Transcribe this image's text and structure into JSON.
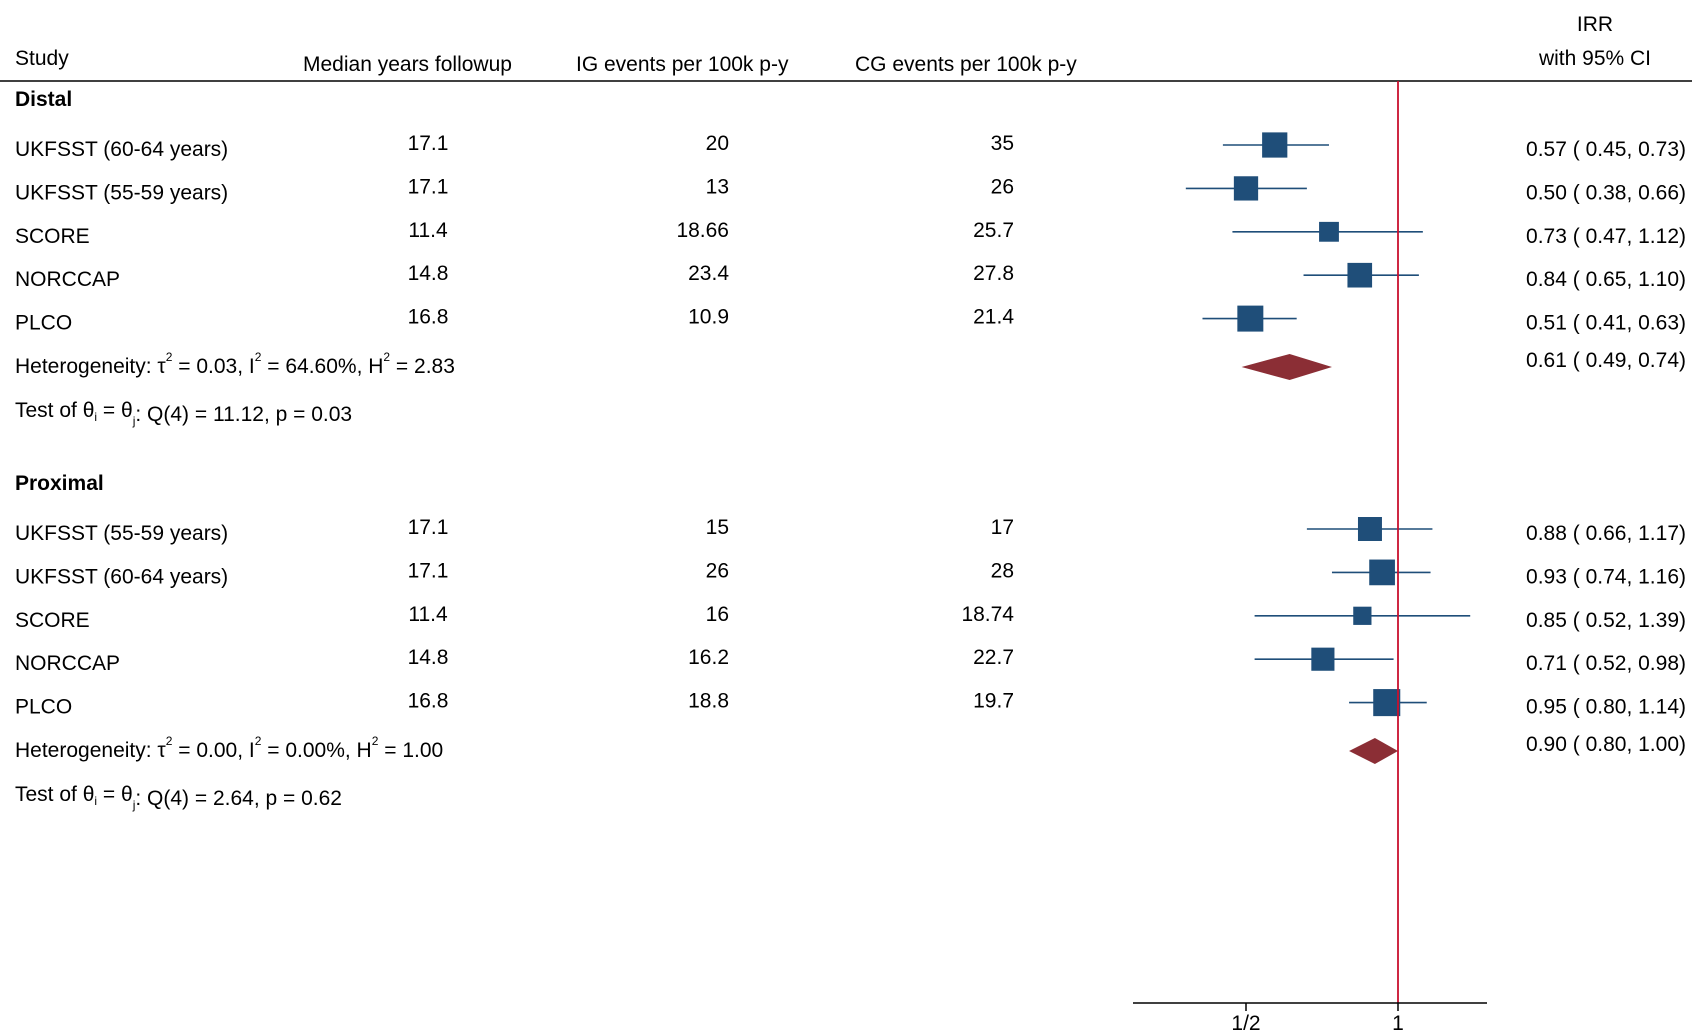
{
  "chart_data": {
    "type": "forest",
    "effect_label": "IRR",
    "ci_label": "with 95% CI",
    "columns": {
      "study": "Study",
      "followup": "Median years followup",
      "ig": "IG events per 100k p-y",
      "cg": "CG events per 100k p-y"
    },
    "x_axis": {
      "scale": "log",
      "ticks": [
        {
          "value": 0.5,
          "label": "1/2"
        },
        {
          "value": 1,
          "label": "1"
        }
      ],
      "reference_line": 1
    },
    "groups": [
      {
        "name": "Distal",
        "studies": [
          {
            "study": "UKFSST (60-64 years)",
            "followup": "17.1",
            "ig": "20",
            "cg": "35",
            "irr": 0.57,
            "lo": 0.45,
            "hi": 0.73,
            "irr_text": "0.57 ( 0.45,  0.73)"
          },
          {
            "study": "UKFSST (55-59 years)",
            "followup": "17.1",
            "ig": "13",
            "cg": "26",
            "irr": 0.5,
            "lo": 0.38,
            "hi": 0.66,
            "irr_text": "0.50 ( 0.38,  0.66)"
          },
          {
            "study": "SCORE",
            "followup": "11.4",
            "ig": "18.66",
            "cg": "25.7",
            "irr": 0.73,
            "lo": 0.47,
            "hi": 1.12,
            "irr_text": "0.73 ( 0.47,  1.12)"
          },
          {
            "study": "NORCCAP",
            "followup": "14.8",
            "ig": "23.4",
            "cg": "27.8",
            "irr": 0.84,
            "lo": 0.65,
            "hi": 1.1,
            "irr_text": "0.84 ( 0.65,  1.10)"
          },
          {
            "study": "PLCO",
            "followup": "16.8",
            "ig": "10.9",
            "cg": "21.4",
            "irr": 0.51,
            "lo": 0.41,
            "hi": 0.63,
            "irr_text": "0.51 ( 0.41,  0.63)"
          }
        ],
        "heterogeneity": {
          "tau2": "0.03",
          "i2": "64.60%",
          "h2": "2.83"
        },
        "test": {
          "q": "Q(4) = 11.12, p = 0.03"
        },
        "pooled": {
          "irr": 0.61,
          "lo": 0.49,
          "hi": 0.74,
          "irr_text": "0.61 ( 0.49,  0.74)"
        }
      },
      {
        "name": "Proximal",
        "studies": [
          {
            "study": "UKFSST (55-59 years)",
            "followup": "17.1",
            "ig": "15",
            "cg": "17",
            "irr": 0.88,
            "lo": 0.66,
            "hi": 1.17,
            "irr_text": "0.88 ( 0.66,  1.17)"
          },
          {
            "study": "UKFSST (60-64 years)",
            "followup": "17.1",
            "ig": "26",
            "cg": "28",
            "irr": 0.93,
            "lo": 0.74,
            "hi": 1.16,
            "irr_text": "0.93 ( 0.74,  1.16)"
          },
          {
            "study": "SCORE",
            "followup": "11.4",
            "ig": "16",
            "cg": "18.74",
            "irr": 0.85,
            "lo": 0.52,
            "hi": 1.39,
            "irr_text": "0.85 ( 0.52,  1.39)"
          },
          {
            "study": "NORCCAP",
            "followup": "14.8",
            "ig": "16.2",
            "cg": "22.7",
            "irr": 0.71,
            "lo": 0.52,
            "hi": 0.98,
            "irr_text": "0.71 ( 0.52,  0.98)"
          },
          {
            "study": "PLCO",
            "followup": "16.8",
            "ig": "18.8",
            "cg": "19.7",
            "irr": 0.95,
            "lo": 0.8,
            "hi": 1.14,
            "irr_text": "0.95 ( 0.80,  1.14)"
          }
        ],
        "heterogeneity": {
          "tau2": "0.00",
          "i2": "0.00%",
          "h2": "1.00"
        },
        "test": {
          "q": "Q(4) = 2.64, p = 0.62"
        },
        "pooled": {
          "irr": 0.9,
          "lo": 0.8,
          "hi": 1.0,
          "irr_text": "0.90 ( 0.80,  1.00)"
        }
      }
    ],
    "colors": {
      "marker": "#1f4e79",
      "ci_line": "#1f4e79",
      "diamond": "#8b2e35",
      "reference": "#c8102e"
    }
  }
}
